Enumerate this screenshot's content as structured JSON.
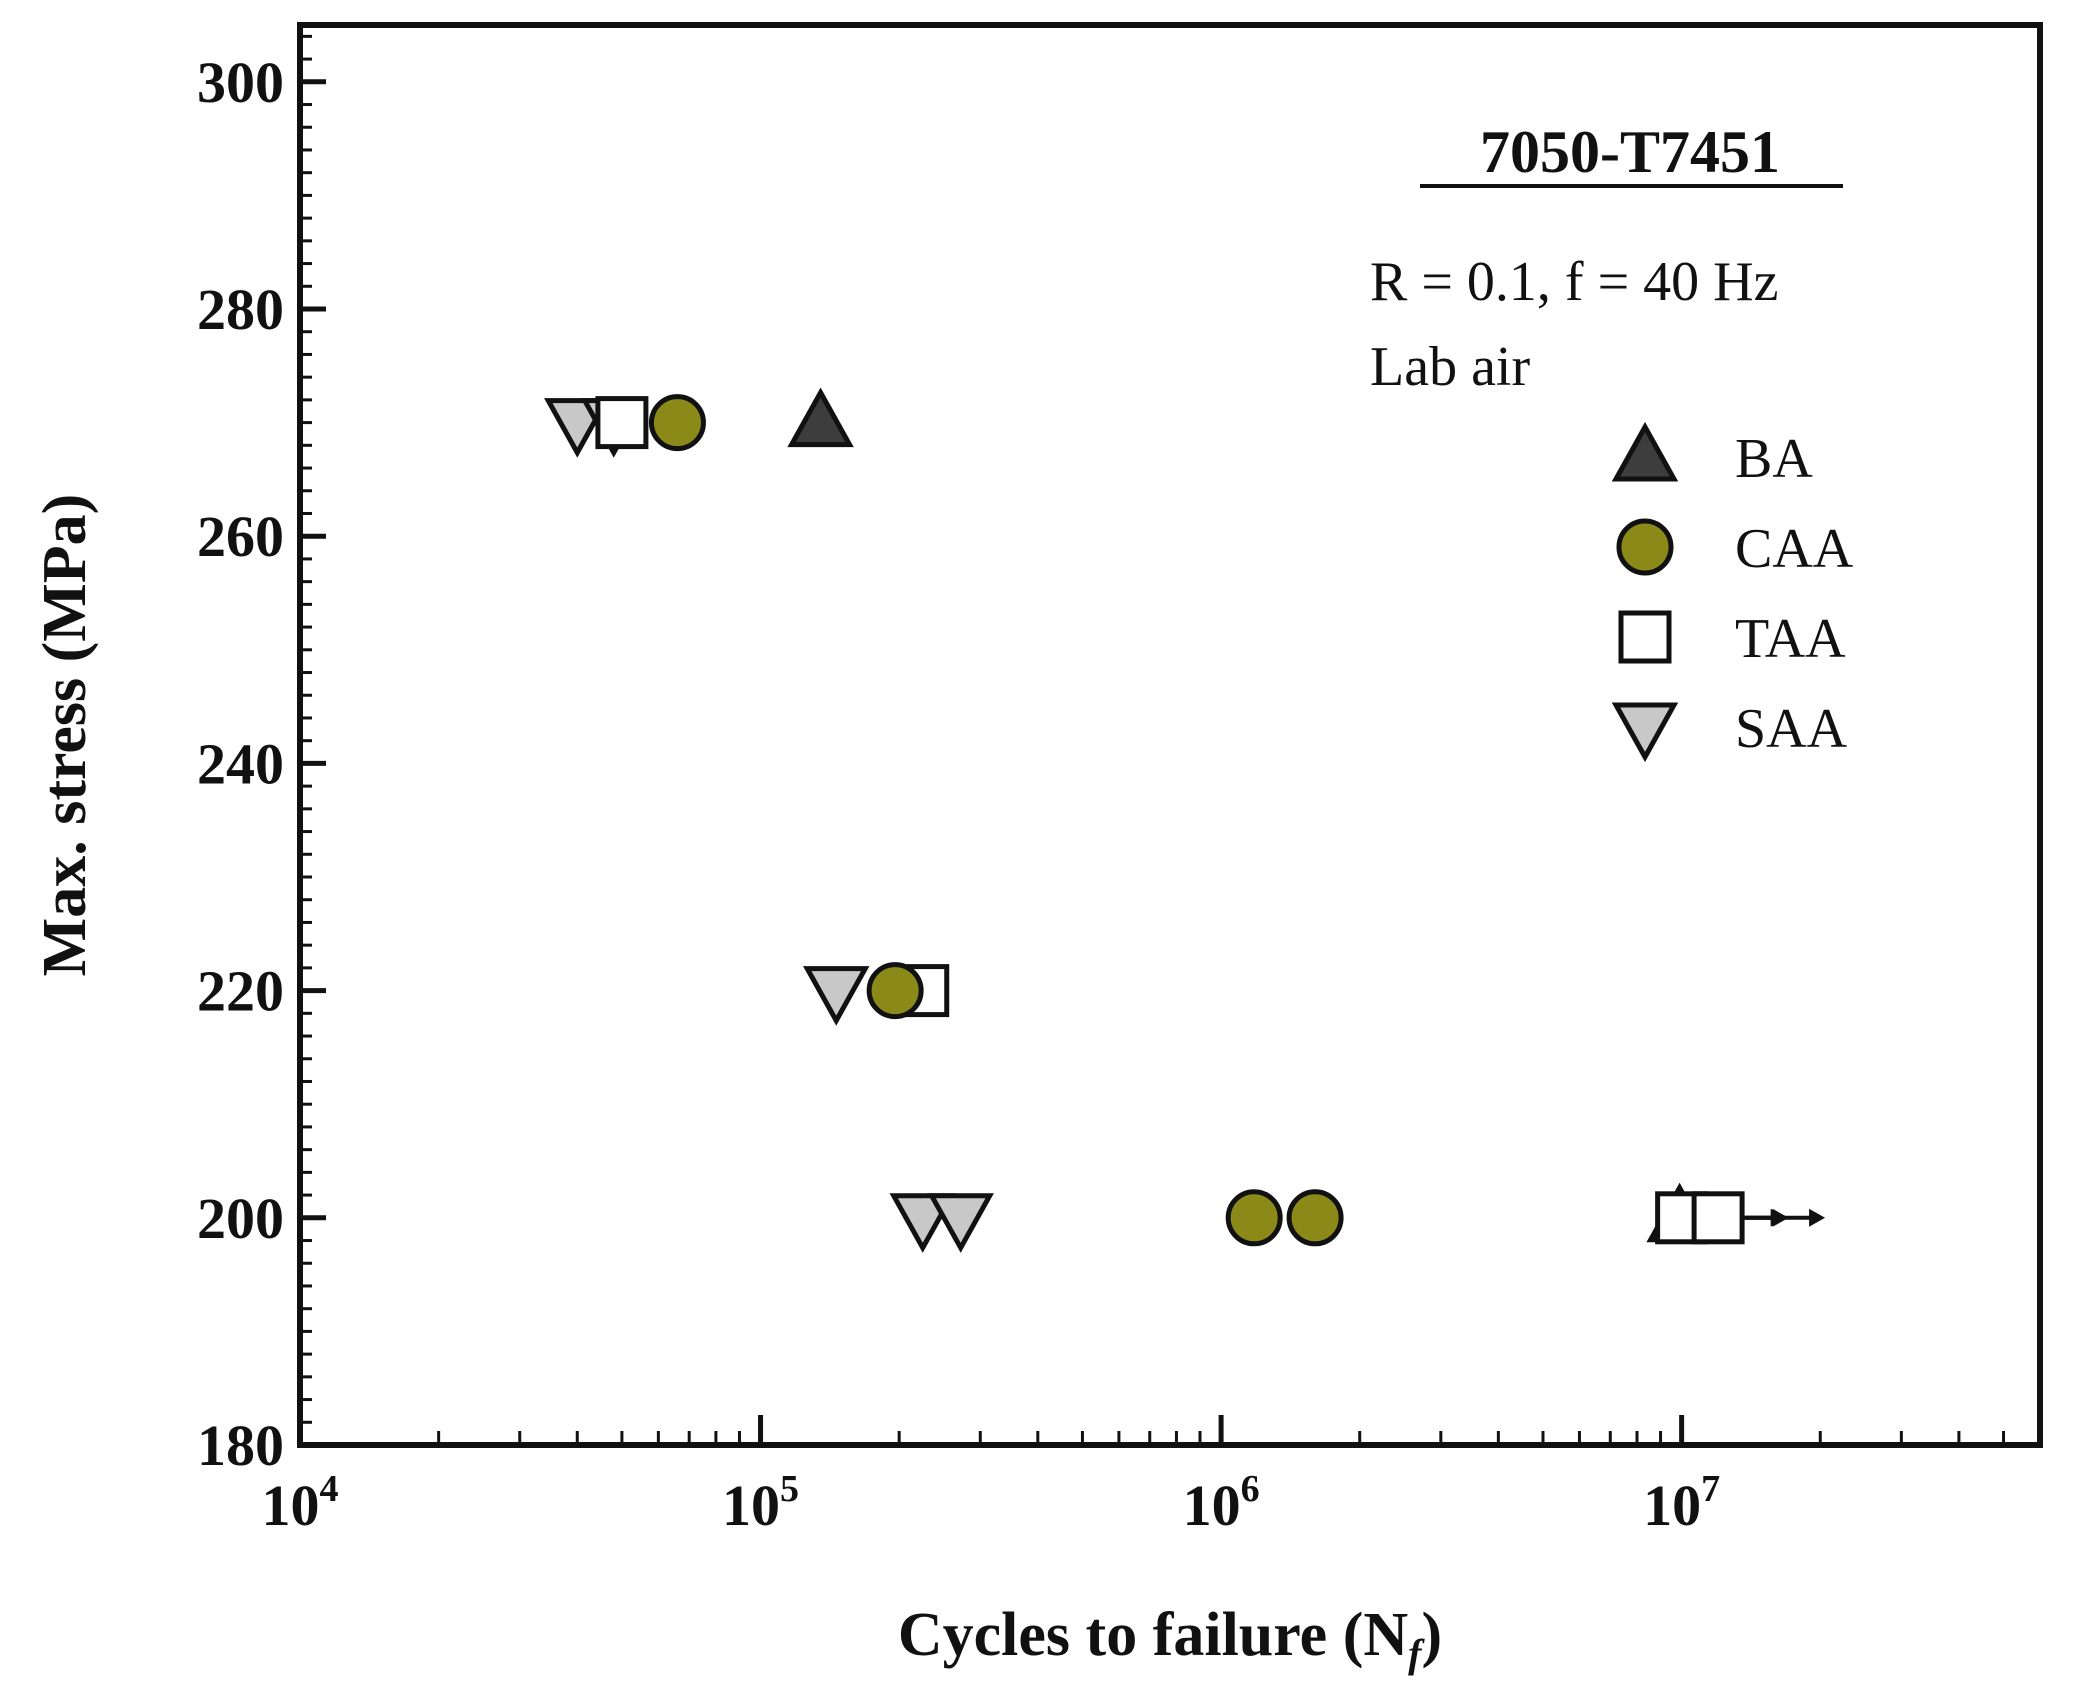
{
  "chart_data": {
    "type": "scatter",
    "title": "7050-T7451",
    "annotations": [
      "R = 0.1, f = 40 Hz",
      "Lab air"
    ],
    "xlabel": "Cycles to failure (N",
    "xlabel_sub": "f",
    "xlabel_close": ")",
    "ylabel": "Max. stress (MPa)",
    "x_scale": "log",
    "xlim": [
      10000,
      60000000
    ],
    "ylim": [
      180,
      305
    ],
    "y_ticks": [
      180,
      200,
      220,
      240,
      260,
      280,
      300
    ],
    "y_tick_labels": [
      "180",
      "200",
      "220",
      "240",
      "260",
      "280",
      "300"
    ],
    "x_ticks": [
      10000,
      100000,
      1000000,
      10000000
    ],
    "x_tick_labels": [
      {
        "base": "10",
        "exp": "4"
      },
      {
        "base": "10",
        "exp": "5"
      },
      {
        "base": "10",
        "exp": "6"
      },
      {
        "base": "10",
        "exp": "7"
      }
    ],
    "grid": false,
    "legend_position": "top-right",
    "runout_note": "arrows indicate runout (no failure)",
    "series": [
      {
        "name": "BA",
        "marker": "triangle-up",
        "fill": "#3d3d3d",
        "points": [
          {
            "x": 135000,
            "y": 270
          },
          {
            "x": 9900000,
            "y": 200,
            "runout": true
          }
        ]
      },
      {
        "name": "CAA",
        "marker": "circle",
        "fill": "#8b8a18",
        "points": [
          {
            "x": 66000,
            "y": 270
          },
          {
            "x": 196000,
            "y": 220
          },
          {
            "x": 1180000,
            "y": 200
          },
          {
            "x": 1600000,
            "y": 200
          }
        ]
      },
      {
        "name": "TAA",
        "marker": "square",
        "fill": "#ffffff",
        "points": [
          {
            "x": 50000,
            "y": 270
          },
          {
            "x": 225000,
            "y": 220
          },
          {
            "x": 10000000,
            "y": 200,
            "runout": true
          },
          {
            "x": 12000000,
            "y": 200,
            "runout": true
          }
        ]
      },
      {
        "name": "SAA",
        "marker": "triangle-down",
        "fill": "#c8c8c8",
        "points": [
          {
            "x": 40000,
            "y": 270
          },
          {
            "x": 48000,
            "y": 270
          },
          {
            "x": 146000,
            "y": 220
          },
          {
            "x": 225000,
            "y": 200
          },
          {
            "x": 272000,
            "y": 200
          }
        ]
      }
    ]
  }
}
